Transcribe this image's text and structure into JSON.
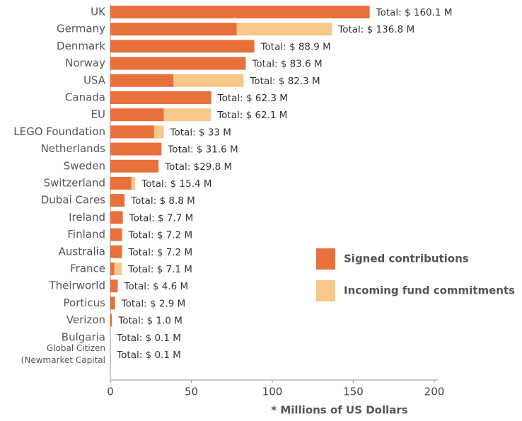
{
  "chart_data": {
    "type": "stacked-barh",
    "x_label": "* Millions of US Dollars",
    "categories": [
      "UK",
      "Germany",
      "Denmark",
      "Norway",
      "USA",
      "Canada",
      "EU",
      "LEGO Foundation",
      "Netherlands",
      "Sweden",
      "Switzerland",
      "Dubai Cares",
      "Ireland",
      "Finland",
      "Australia",
      "France",
      "Theirworld",
      "Porticus",
      "Verizon",
      "Bulgaria",
      [
        "Global Citizen",
        "(Newmarket Capital"
      ]
    ],
    "series": [
      {
        "name": "Signed contributions",
        "color": "#e8703a",
        "values": [
          160.1,
          78,
          88.9,
          83.6,
          39,
          62.3,
          33,
          27,
          31.6,
          29.8,
          13,
          8.8,
          7.7,
          7.2,
          7.2,
          2.5,
          4.6,
          2.9,
          1.0,
          0.1,
          0.1
        ]
      },
      {
        "name": "Incoming fund commitments",
        "color": "#f8c88a",
        "values": [
          0,
          58.8,
          0,
          0,
          43.3,
          0,
          29.1,
          6,
          0,
          0,
          2.4,
          0,
          0,
          0,
          0,
          4.6,
          0,
          0,
          0,
          0,
          0
        ]
      }
    ],
    "totals": [
      160.1,
      136.8,
      88.9,
      83.6,
      82.3,
      62.3,
      62.1,
      33,
      31.6,
      29.8,
      15.4,
      8.8,
      7.7,
      7.2,
      7.2,
      7.1,
      4.6,
      2.9,
      1.0,
      0.1,
      0.1
    ],
    "total_labels": [
      "Total: $ 160.1 M",
      "Total: $ 136.8 M",
      "Total: $ 88.9 M",
      "Total: $ 83.6 M",
      "Total: $ 82.3 M",
      "Total: $ 62.3 M",
      "Total: $ 62.1 M",
      "Total: $ 33 M",
      "Total: $ 31.6 M",
      "Total: $29.8 M",
      "Total: $ 15.4 M",
      "Total: $ 8.8 M",
      "Total: $ 7.7 M",
      "Total: $ 7.2 M",
      "Total: $ 7.2 M",
      "Total: $ 7.1 M",
      "Total: $ 4.6 M",
      "Total: $ 2.9 M",
      "Total: $ 1.0 M",
      "Total: $ 0.1 M",
      "Total: $ 0.1 M"
    ],
    "xlim": [
      0,
      200
    ],
    "xticks": [
      0,
      50,
      100,
      150,
      200
    ],
    "grid": false,
    "legend": "right"
  }
}
